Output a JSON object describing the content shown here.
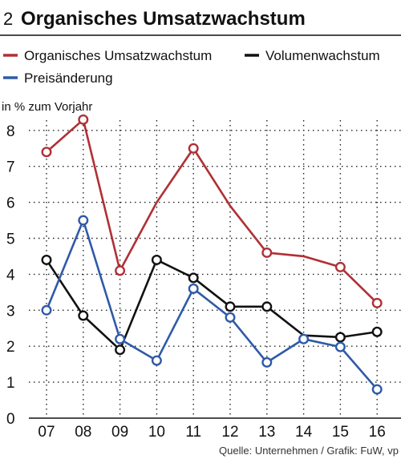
{
  "figure_number": "2",
  "source": "Quelle: Unternehmen / Grafik: FuW, vp",
  "chart_data": {
    "type": "line",
    "title": "Organisches Umsatzwachstum",
    "ylabel": "in % zum Vorjahr",
    "xlabel": "",
    "categories": [
      "07",
      "08",
      "09",
      "10",
      "11",
      "12",
      "13",
      "14",
      "15",
      "16"
    ],
    "ylim": [
      0,
      8
    ],
    "yticks": [
      0,
      1,
      2,
      3,
      4,
      5,
      6,
      7,
      8
    ],
    "grid": true,
    "legend_position": "top",
    "series": [
      {
        "name": "Organisches Umsatzwachstum",
        "color": "#b03035",
        "values": [
          7.4,
          8.3,
          4.1,
          6.0,
          7.5,
          5.9,
          4.6,
          4.5,
          4.2,
          3.2
        ],
        "markers": [
          true,
          true,
          true,
          false,
          true,
          false,
          true,
          false,
          true,
          true
        ]
      },
      {
        "name": "Volumenwachstum",
        "color": "#111111",
        "values": [
          4.4,
          2.85,
          1.9,
          4.4,
          3.9,
          3.1,
          3.1,
          2.3,
          2.25,
          2.4
        ],
        "markers": [
          true,
          true,
          true,
          true,
          true,
          true,
          true,
          false,
          true,
          true
        ]
      },
      {
        "name": "Preisänderung",
        "color": "#2f5aa8",
        "values": [
          3.0,
          5.5,
          2.2,
          1.6,
          3.6,
          2.8,
          1.55,
          2.2,
          1.98,
          0.8
        ],
        "markers": [
          true,
          true,
          true,
          true,
          true,
          true,
          true,
          true,
          true,
          true
        ]
      }
    ]
  }
}
